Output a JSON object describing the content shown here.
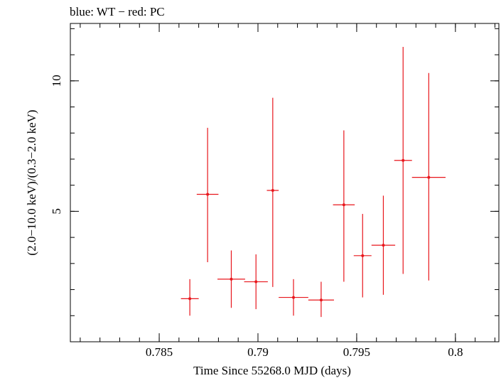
{
  "chart_data": {
    "type": "scatter",
    "title": "blue: WT − red: PC",
    "xlabel": "Time Since 55268.0 MJD (days)",
    "ylabel": "(2.0−10.0 keV)/(0.3−2.0 keV)",
    "xlim": [
      0.7805,
      0.8022
    ],
    "ylim": [
      0.0,
      12.2
    ],
    "x_ticks": [
      {
        "value": 0.785,
        "label": "0.785"
      },
      {
        "value": 0.79,
        "label": "0.79"
      },
      {
        "value": 0.795,
        "label": "0.795"
      },
      {
        "value": 0.8,
        "label": "0.8"
      }
    ],
    "y_ticks": [
      {
        "value": 5,
        "label": "5"
      },
      {
        "value": 10,
        "label": "10"
      }
    ],
    "series": [
      {
        "color": "#e8161c",
        "points": [
          {
            "x": 0.78655,
            "xerr": 0.00045,
            "y": 1.65,
            "ylo": 1.0,
            "yhi": 2.4
          },
          {
            "x": 0.78745,
            "xerr": 0.00055,
            "y": 5.65,
            "ylo": 3.05,
            "yhi": 8.2
          },
          {
            "x": 0.78865,
            "xerr": 0.0007,
            "y": 2.4,
            "ylo": 1.3,
            "yhi": 3.5
          },
          {
            "x": 0.7899,
            "xerr": 0.0006,
            "y": 2.3,
            "ylo": 1.25,
            "yhi": 3.35
          },
          {
            "x": 0.79075,
            "xerr": 0.0003,
            "y": 5.8,
            "ylo": 2.1,
            "yhi": 9.35
          },
          {
            "x": 0.7918,
            "xerr": 0.00075,
            "y": 1.7,
            "ylo": 1.0,
            "yhi": 2.4
          },
          {
            "x": 0.7932,
            "xerr": 0.00065,
            "y": 1.6,
            "ylo": 0.95,
            "yhi": 2.3
          },
          {
            "x": 0.79435,
            "xerr": 0.00055,
            "y": 5.25,
            "ylo": 2.3,
            "yhi": 8.1
          },
          {
            "x": 0.7953,
            "xerr": 0.00045,
            "y": 3.3,
            "ylo": 1.7,
            "yhi": 4.9
          },
          {
            "x": 0.79635,
            "xerr": 0.0006,
            "y": 3.7,
            "ylo": 1.8,
            "yhi": 5.6
          },
          {
            "x": 0.79735,
            "xerr": 0.00045,
            "y": 6.95,
            "ylo": 2.6,
            "yhi": 11.3
          },
          {
            "x": 0.79865,
            "xerr": 0.00085,
            "y": 6.3,
            "ylo": 2.35,
            "yhi": 10.3
          }
        ]
      }
    ]
  }
}
